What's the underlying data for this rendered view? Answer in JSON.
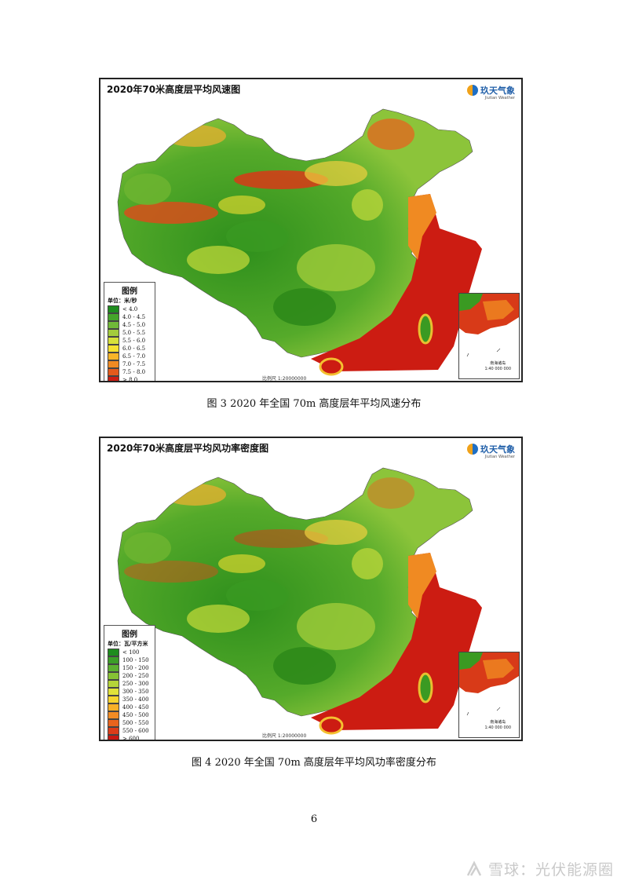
{
  "maps": [
    {
      "title": "2020年70米高度层平均风速图",
      "logo_text": "玖天气象",
      "logo_sub": "Jiutian Weather",
      "legend": {
        "title": "图例",
        "unit": "单位：米/秒",
        "items": [
          {
            "label": "< 4.0",
            "color": "#1e8c1e"
          },
          {
            "label": "4.0 - 4.5",
            "color": "#45a52a"
          },
          {
            "label": "4.5 - 5.0",
            "color": "#70b838"
          },
          {
            "label": "5.0 - 5.5",
            "color": "#a3cc3c"
          },
          {
            "label": "5.5 - 6.0",
            "color": "#d6e03a"
          },
          {
            "label": "6.0 - 6.5",
            "color": "#f4e030"
          },
          {
            "label": "6.5 - 7.0",
            "color": "#f8b428"
          },
          {
            "label": "7.0 - 7.5",
            "color": "#f08a22"
          },
          {
            "label": "7.5 - 8.0",
            "color": "#e45a1c"
          },
          {
            "label": "> 8.0",
            "color": "#cc1e14"
          }
        ]
      },
      "scale": "比例尺 1:20000000",
      "inset_label": "南海诸岛",
      "inset_scale": "1:40 000 000",
      "caption": "图 3 2020 年全国 70m 高度层年平均风速分布"
    },
    {
      "title": "2020年70米高度层平均风功率密度图",
      "logo_text": "玖天气象",
      "logo_sub": "Jiutian Weather",
      "legend": {
        "title": "图例",
        "unit": "单位：瓦/平方米",
        "items": [
          {
            "label": "< 100",
            "color": "#1e8c1e"
          },
          {
            "label": "100 - 150",
            "color": "#3c9e28"
          },
          {
            "label": "150 - 200",
            "color": "#5cb030"
          },
          {
            "label": "200 - 250",
            "color": "#86c234"
          },
          {
            "label": "250 - 300",
            "color": "#b4d438"
          },
          {
            "label": "300 - 350",
            "color": "#e0e23a"
          },
          {
            "label": "350 - 400",
            "color": "#f6d42e"
          },
          {
            "label": "400 - 450",
            "color": "#f8b028"
          },
          {
            "label": "450 - 500",
            "color": "#f28c24"
          },
          {
            "label": "500 - 550",
            "color": "#e8641e"
          },
          {
            "label": "550 - 600",
            "color": "#dc3c18"
          },
          {
            "label": "> 600",
            "color": "#c81812"
          }
        ]
      },
      "scale": "比例尺 1:20000000",
      "inset_label": "南海诸岛",
      "inset_scale": "1:40 000 000",
      "caption": "图 4 2020 年全国 70m 高度层年平均风功率密度分布"
    }
  ],
  "page_number": "6",
  "watermark": "雪球：光伏能源圈"
}
